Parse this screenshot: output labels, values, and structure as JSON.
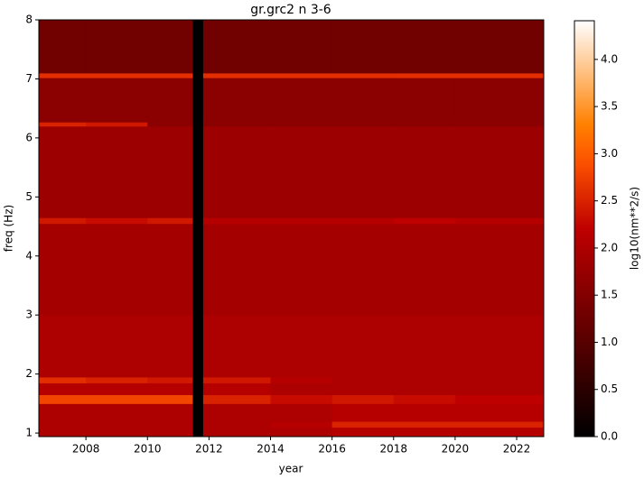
{
  "chart_data": {
    "type": "heatmap",
    "title": "gr.grc2 n 3-6",
    "xlabel": "year",
    "ylabel": "freq (Hz)",
    "colorbar_label": "log10(nm**2/s)",
    "colormap": "gist_heat",
    "xlim": [
      2006.47,
      2022.88
    ],
    "ylim": [
      0.94,
      8
    ],
    "xticks": [
      2008,
      2010,
      2012,
      2014,
      2016,
      2018,
      2020,
      2022
    ],
    "yticks": [
      1,
      2,
      3,
      4,
      5,
      6,
      7,
      8
    ],
    "xbins": [
      2006.47,
      2008,
      2010,
      2011.46,
      2011.81,
      2014,
      2016,
      2018,
      2020,
      2022.88
    ],
    "ybins": [
      0.94,
      1.1,
      1.2,
      1.5,
      1.65,
      1.85,
      1.95,
      3,
      4.55,
      4.65,
      6.2,
      6.27,
      7.02,
      7.1,
      8
    ],
    "z": [
      [
        2.0,
        2.0,
        2.0,
        null,
        2.0,
        2.0,
        2.1,
        2.1,
        2.1
      ],
      [
        2.0,
        2.0,
        2.0,
        null,
        2.0,
        2.1,
        2.5,
        2.5,
        2.5
      ],
      [
        2.0,
        2.0,
        2.0,
        null,
        2.0,
        2.0,
        2.1,
        2.1,
        2.1
      ],
      [
        2.8,
        2.8,
        2.8,
        null,
        2.5,
        2.3,
        2.4,
        2.3,
        2.2
      ],
      [
        2.1,
        2.1,
        2.1,
        null,
        2.1,
        2.0,
        2.0,
        2.0,
        2.0
      ],
      [
        2.6,
        2.5,
        2.4,
        null,
        2.4,
        2.1,
        2.0,
        2.0,
        2.0
      ],
      [
        2.0,
        2.0,
        2.0,
        null,
        2.0,
        2.0,
        2.0,
        2.0,
        2.0
      ],
      [
        1.9,
        1.9,
        1.9,
        null,
        1.9,
        1.9,
        1.9,
        1.9,
        1.9
      ],
      [
        2.4,
        2.3,
        2.4,
        null,
        2.1,
        2.1,
        2.1,
        2.2,
        2.1
      ],
      [
        1.8,
        1.8,
        1.8,
        null,
        1.8,
        1.8,
        1.8,
        1.8,
        1.8
      ],
      [
        2.5,
        2.4,
        1.6,
        null,
        1.6,
        1.6,
        1.6,
        1.6,
        1.6
      ],
      [
        1.6,
        1.6,
        1.6,
        null,
        1.6,
        1.6,
        1.6,
        1.6,
        1.6
      ],
      [
        2.6,
        2.6,
        2.6,
        null,
        2.6,
        2.6,
        2.6,
        2.6,
        2.6
      ],
      [
        1.3,
        1.3,
        1.3,
        null,
        1.3,
        1.3,
        1.3,
        1.3,
        1.3
      ]
    ],
    "clim": [
      0,
      4.41
    ],
    "cticks": [
      {
        "value": 0,
        "label": "0.0"
      },
      {
        "value": 0.5,
        "label": "0.5"
      },
      {
        "value": 1,
        "label": "1.0"
      },
      {
        "value": 1.5,
        "label": "1.5"
      },
      {
        "value": 2,
        "label": "2.0"
      },
      {
        "value": 2.5,
        "label": "2.5"
      },
      {
        "value": 3,
        "label": "3.0"
      },
      {
        "value": 3.5,
        "label": "3.5"
      },
      {
        "value": 4,
        "label": "4.0"
      }
    ]
  }
}
